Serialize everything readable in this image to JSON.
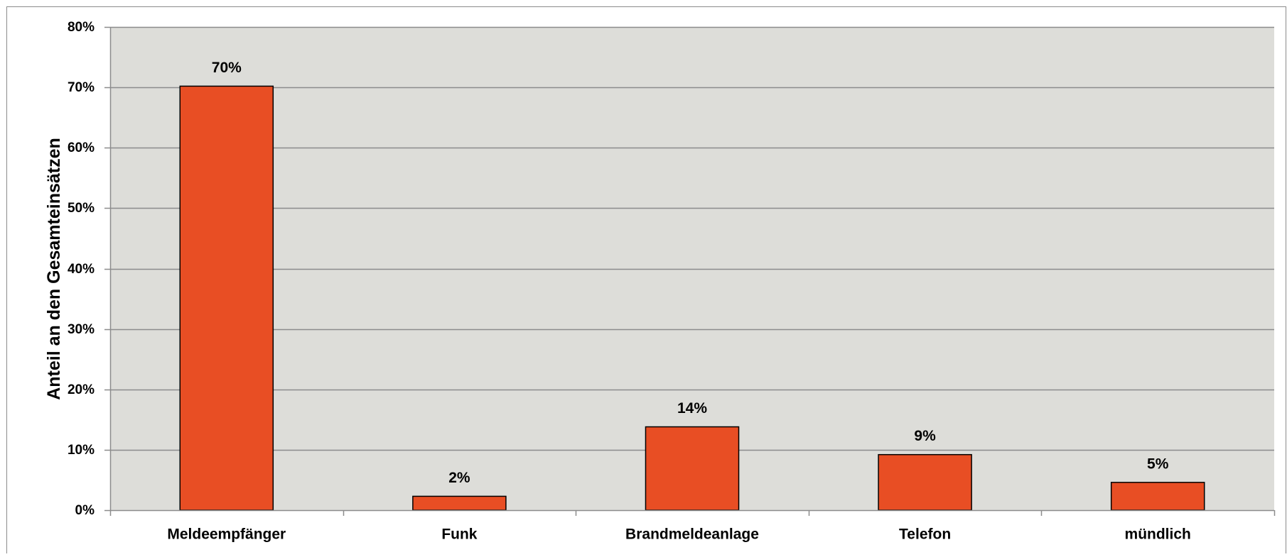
{
  "chart_data": {
    "type": "bar",
    "title": "",
    "xlabel": "",
    "ylabel": "Anteil an den Gesamteinsätzen",
    "categories": [
      "Meldeempfänger",
      "Funk",
      "Brandmeldeanlage",
      "Telefon",
      "mündlich"
    ],
    "values": [
      0.702,
      0.023,
      0.138,
      0.092,
      0.046
    ],
    "data_labels": [
      "70%",
      "2%",
      "14%",
      "9%",
      "5%"
    ],
    "ylim": [
      0,
      0.8
    ],
    "yticks": [
      0,
      0.1,
      0.2,
      0.3,
      0.4,
      0.5,
      0.6,
      0.7,
      0.8
    ],
    "ytick_labels": [
      "0%",
      "10%",
      "20%",
      "30%",
      "40%",
      "50%",
      "60%",
      "70%",
      "80%"
    ],
    "grid": true,
    "legend": "none",
    "colors": {
      "bar_fill": "#E84E24",
      "bar_stroke": "#000000",
      "plot_background": "#DDDDD9",
      "grid": "#8C8C8C",
      "axis": "#8C8C8C",
      "frame": "#8C8C8C"
    }
  }
}
